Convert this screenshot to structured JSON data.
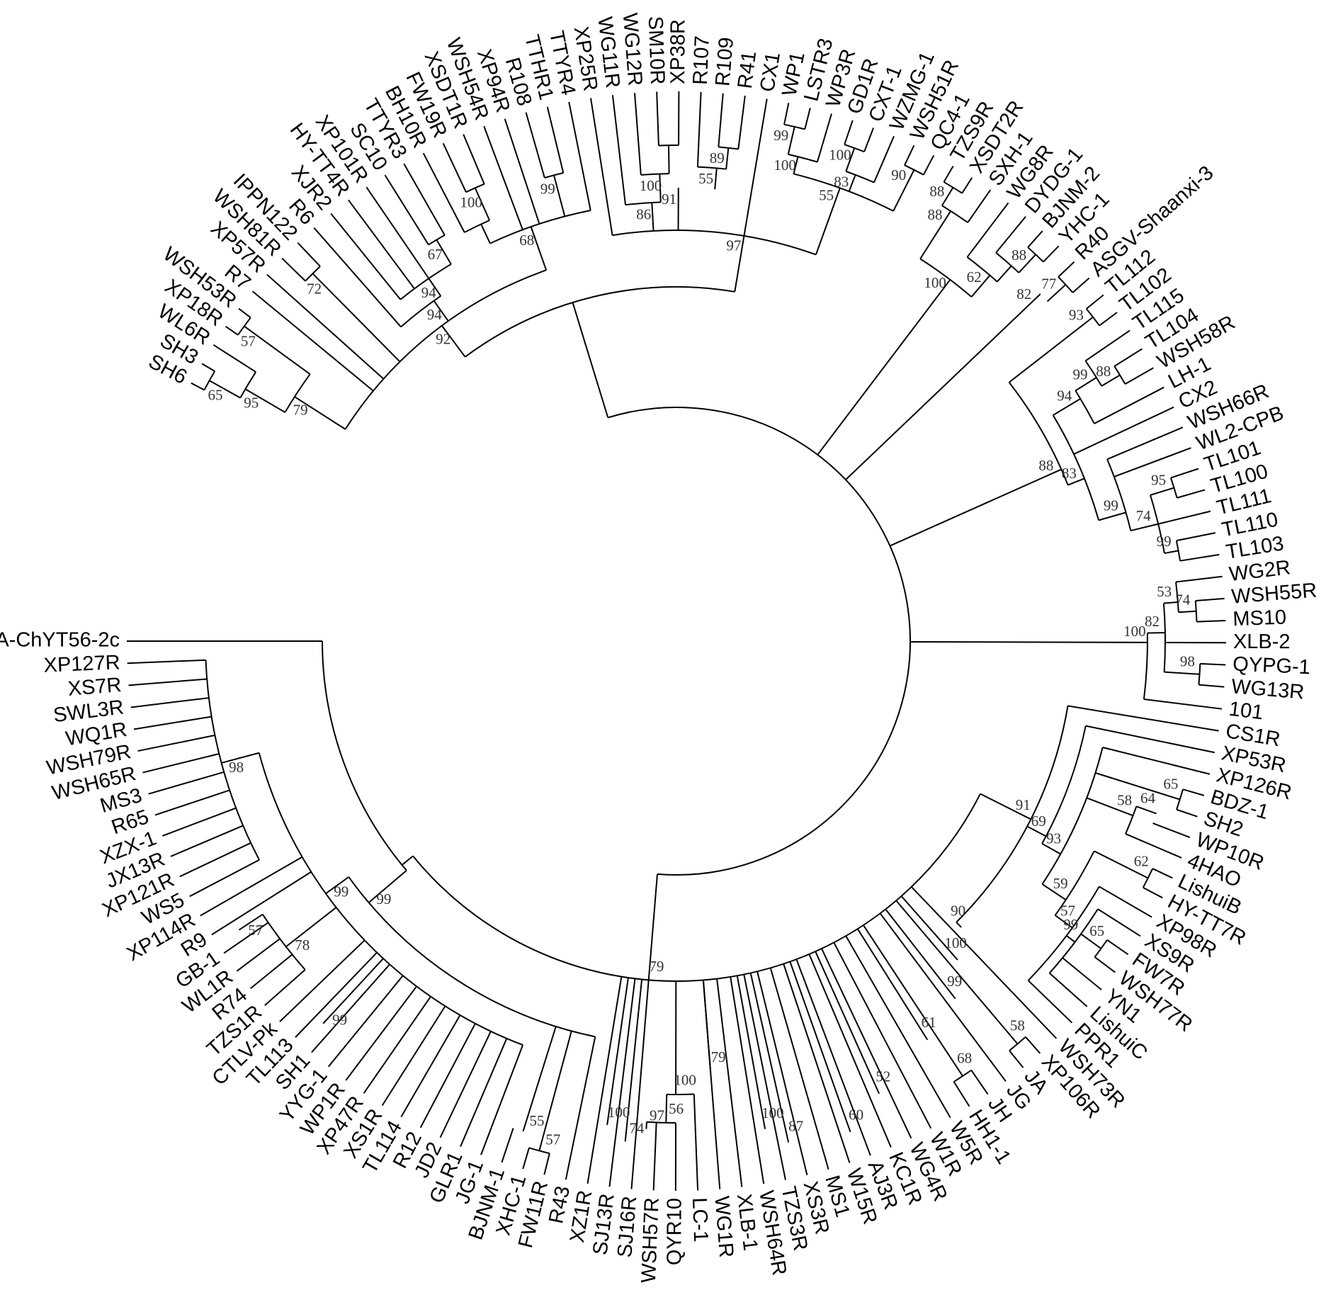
{
  "tree": {
    "leaves": [
      "SH6",
      "SH3",
      "WL6R",
      "XP18R",
      "WSH53R",
      "R7",
      "XP57R",
      "WSH81R",
      "IPPN122",
      "R6",
      "XJR2",
      "HY-TT4R",
      "XP101R",
      "SC10",
      "TTYR3",
      "BH10R",
      "FW19R",
      "XSDT1R",
      "WSH54R",
      "XP94R",
      "R108",
      "TTHR1",
      "TTYR4",
      "XP25R",
      "WG11R",
      "WG12R",
      "SM10R",
      "XP38R",
      "R107",
      "R109",
      "R41",
      "CX1",
      "WP1",
      "LSTR3",
      "WP3R",
      "GD1R",
      "CXT-1",
      "WZMG-1",
      "WSH51R",
      "QC4-1",
      "TZS9R",
      "XSDT2R",
      "SXH-1",
      "WG8R",
      "DYDG-1",
      "BJNM-2",
      "YHC-1",
      "R40",
      "ASGV-Shaanxi-3",
      "TL112",
      "TL102",
      "TL115",
      "TL104",
      "WSH58R",
      "LH-1",
      "CX2",
      "WSH66R",
      "WL2-CPB",
      "TL101",
      "TL100",
      "TL111",
      "TL110",
      "TL103",
      "WG2R",
      "WSH55R",
      "MS10",
      "XLB-2",
      "QYPG-1",
      "WG13R",
      "101",
      "CS1R",
      "XP53R",
      "XP126R",
      "BDZ-1",
      "SH2",
      "WP10R",
      "4HAO",
      "LishuiB",
      "HY-TT7R",
      "XP98R",
      "XS9R",
      "FW7R",
      "WSH77R",
      "YN1",
      "LishuiC",
      "PPR1",
      "WSH73R",
      "XP106R",
      "JA",
      "JG",
      "JH",
      "HH1-1",
      "W5R",
      "W1R",
      "WG4R",
      "KC1R",
      "AJ3R",
      "W15R",
      "MS1",
      "XS3R",
      "TZS3R",
      "WSH64R",
      "XLB-1",
      "WG1R",
      "LC-1",
      "QYR10",
      "WSH57R",
      "SJ16R",
      "SJ13R",
      "XZ1R",
      "R43",
      "FW11R",
      "XHC-1",
      "BJNM-1",
      "JG-1",
      "GLR1",
      "JD2",
      "R12",
      "TL114",
      "XS1R",
      "XP47R",
      "WP1R",
      "YYG-1",
      "SH1",
      "TL113",
      "CTLV-Pk",
      "TZS1R",
      "R74",
      "WL1R",
      "GB-1",
      "R9",
      "XP114R",
      "WS5",
      "XP121R",
      "JX13R",
      "XZX-1",
      "R65",
      "MS3",
      "WSH65R",
      "WSH79R",
      "WQ1R",
      "SWL3R",
      "XS7R",
      "XP127R",
      "CVA-ChYT56-2c"
    ],
    "clades": [
      {
        "r": 755,
        "from": "SH6",
        "to": "SH3",
        "support": "65"
      },
      {
        "r": 755,
        "from": "XP18R",
        "to": "WSH53R",
        "support": "57"
      },
      {
        "r": 705,
        "from": "SH6",
        "to": "WL6R",
        "support": "95"
      },
      {
        "r": 640,
        "from": "SH6",
        "to": "WSH53R",
        "support": "79"
      },
      {
        "r": 730,
        "from": "WSH81R",
        "to": "IPPN122",
        "support": "72"
      },
      {
        "r": 660,
        "from": "SC10",
        "to": "TTYR3",
        "support": "67"
      },
      {
        "r": 620,
        "from": "XJR2",
        "to": "TTYR3",
        "support": "94"
      },
      {
        "r": 590,
        "from": "R6",
        "to": "TTYR3",
        "support": "94"
      },
      {
        "r": 700,
        "from": "FW19R",
        "to": "XSDT1R",
        "support": "100"
      },
      {
        "r": 650,
        "from": "BH10R",
        "to": "XSDT1R",
        "support": ""
      },
      {
        "r": 680,
        "from": "R108",
        "to": "TTHR1",
        "support": "99"
      },
      {
        "r": 620,
        "from": "BH10R",
        "to": "TTYR4",
        "support": "68"
      },
      {
        "r": 555,
        "from": "SH6",
        "to": "TTYR4",
        "support": "92"
      },
      {
        "r": 700,
        "from": "SM10R",
        "to": "XP38R",
        "support": ""
      },
      {
        "r": 660,
        "from": "WG12R",
        "to": "XP38R",
        "support": "100"
      },
      {
        "r": 620,
        "from": "WG11R",
        "to": "XP38R",
        "support": "86"
      },
      {
        "r": 700,
        "from": "R109",
        "to": "R41",
        "support": "89"
      },
      {
        "r": 670,
        "from": "R107",
        "to": "R41",
        "support": "55"
      },
      {
        "r": 640,
        "from": "WG11R",
        "to": "R41",
        "support": "91"
      },
      {
        "r": 745,
        "from": "WP1",
        "to": "LSTR3",
        "support": "99"
      },
      {
        "r": 705,
        "from": "WP1",
        "to": "WP3R",
        "support": "100"
      },
      {
        "r": 740,
        "from": "GD1R",
        "to": "CXT-1",
        "support": "100"
      },
      {
        "r": 705,
        "from": "GD1R",
        "to": "WZMG-1",
        "support": "83"
      },
      {
        "r": 745,
        "from": "WSH51R",
        "to": "QC4-1",
        "support": "90"
      },
      {
        "r": 680,
        "from": "WP1",
        "to": "QC4-1",
        "support": "55"
      },
      {
        "r": 580,
        "from": "XP25R",
        "to": "QC4-1",
        "support": "97"
      },
      {
        "r": 500,
        "from": "SH6",
        "to": "QC4-1",
        "support": ""
      },
      {
        "r": 750,
        "from": "TZS9R",
        "to": "XSDT2R",
        "support": "88"
      },
      {
        "r": 720,
        "from": "TZS9R",
        "to": "SXH-1",
        "support": "88"
      },
      {
        "r": 745,
        "from": "BJNM-2",
        "to": "YHC-1",
        "support": "88"
      },
      {
        "r": 710,
        "from": "DYDG-1",
        "to": "YHC-1",
        "support": ""
      },
      {
        "r": 680,
        "from": "WG8R",
        "to": "YHC-1",
        "support": "62"
      },
      {
        "r": 640,
        "from": "TZS9R",
        "to": "YHC-1",
        "support": "100"
      },
      {
        "r": 745,
        "from": "R40",
        "to": "ASGV-Shaanxi-3",
        "support": "77"
      },
      {
        "r": 710,
        "from": "YHC-1",
        "to": "ASGV-Shaanxi-3",
        "support": "82"
      },
      {
        "r": 745,
        "from": "TL112",
        "to": "TL102",
        "support": "93"
      },
      {
        "r": 730,
        "from": "TL104",
        "to": "WSH58R",
        "support": "88"
      },
      {
        "r": 700,
        "from": "TL115",
        "to": "WSH58R",
        "support": "99"
      },
      {
        "r": 665,
        "from": "TL115",
        "to": "LH-1",
        "support": "94"
      },
      {
        "r": 735,
        "from": "TL101",
        "to": "TL100",
        "support": "95"
      },
      {
        "r": 720,
        "from": "TL110",
        "to": "TL103",
        "support": "99"
      },
      {
        "r": 700,
        "from": "TL101",
        "to": "TL103",
        "support": "74"
      },
      {
        "r": 660,
        "from": "WSH66R",
        "to": "TL103",
        "support": "99"
      },
      {
        "r": 620,
        "from": "TL115",
        "to": "TL103",
        "support": "83"
      },
      {
        "r": 595,
        "from": "TL112",
        "to": "TL103",
        "support": "88"
      },
      {
        "r": 735,
        "from": "WSH55R",
        "to": "MS10",
        "support": "74"
      },
      {
        "r": 710,
        "from": "WG2R",
        "to": "MS10",
        "support": "53"
      },
      {
        "r": 740,
        "from": "QYPG-1",
        "to": "WG13R",
        "support": "98"
      },
      {
        "r": 690,
        "from": "WG2R",
        "to": "WG13R",
        "support": "82"
      },
      {
        "r": 665,
        "from": "WG2R",
        "to": "101",
        "support": "100"
      },
      {
        "r": 745,
        "from": "BDZ-1",
        "to": "SH2",
        "support": "65"
      },
      {
        "r": 720,
        "from": "SH2",
        "to": "WP10R",
        "support": "64"
      },
      {
        "r": 690,
        "from": "SH2",
        "to": "4HAO",
        "support": "58"
      },
      {
        "r": 745,
        "from": "LishuiB",
        "to": "HY-TT7R",
        "support": "62"
      },
      {
        "r": 740,
        "from": "FW7R",
        "to": "WSH77R",
        "support": "65"
      },
      {
        "r": 705,
        "from": "XS9R",
        "to": "LishuiC",
        "support": "99"
      },
      {
        "r": 690,
        "from": "HY-TT7R",
        "to": "PPR1",
        "support": "57"
      },
      {
        "r": 660,
        "from": "4HAO",
        "to": "PPR1",
        "support": "59"
      },
      {
        "r": 620,
        "from": "XP126R",
        "to": "PPR1",
        "support": "93"
      },
      {
        "r": 590,
        "from": "XP53R",
        "to": "PPR1",
        "support": "69"
      },
      {
        "r": 560,
        "from": "CS1R",
        "to": "PPR1",
        "support": "91"
      },
      {
        "r": 745,
        "from": "XP106R",
        "to": "JA",
        "support": "58"
      },
      {
        "r": 735,
        "from": "JH",
        "to": "HH1-1",
        "support": "68"
      },
      {
        "r": 735,
        "from": "W15R",
        "to": "AJ3R",
        "support": "60"
      },
      {
        "r": 700,
        "from": "AJ3R",
        "to": "W1R",
        "support": "52"
      },
      {
        "r": 665,
        "from": "W1R",
        "to": "JG",
        "support": "61"
      },
      {
        "r": 640,
        "from": "JG",
        "to": "JA",
        "support": "99"
      },
      {
        "r": 600,
        "from": "JA",
        "to": "WSH73R",
        "support": "100"
      },
      {
        "r": 570,
        "from": "WSH73R",
        "to": "PPR1",
        "support": "90"
      },
      {
        "r": 725,
        "from": "TZS3R",
        "to": "XS3R",
        "support": "87"
      },
      {
        "r": 700,
        "from": "XLB-1",
        "to": "XS3R",
        "support": "100"
      },
      {
        "r": 690,
        "from": "SJ16R",
        "to": "WSH57R",
        "support": "97"
      },
      {
        "r": 710,
        "from": "SJ13R",
        "to": "SJ16R",
        "support": "74"
      },
      {
        "r": 680,
        "from": "QYR10",
        "to": "WSH57R",
        "support": "56"
      },
      {
        "r": 640,
        "from": "LC-1",
        "to": "WSH57R",
        "support": "100"
      },
      {
        "r": 610,
        "from": "LC-1",
        "to": "XLB-1",
        "support": "79"
      },
      {
        "r": 690,
        "from": "XZ1R",
        "to": "SJ13R",
        "support": "100"
      },
      {
        "r": 745,
        "from": "FW11R",
        "to": "XHC-1",
        "support": "57"
      },
      {
        "r": 725,
        "from": "XHC-1",
        "to": "BJNM-1",
        "support": "55"
      },
      {
        "r": 735,
        "from": "TL113",
        "to": "SH1",
        "support": "99"
      },
      {
        "r": 740,
        "from": "R9",
        "to": "GB-1",
        "support": "57"
      },
      {
        "r": 700,
        "from": "TZS1R",
        "to": "GB-1",
        "support": "78"
      },
      {
        "r": 665,
        "from": "WS5",
        "to": "XP127R",
        "support": "98"
      },
      {
        "r": 610,
        "from": "JG-1",
        "to": "XP127R",
        "support": "99"
      },
      {
        "r": 570,
        "from": "R43",
        "to": "XP127R",
        "support": "99"
      },
      {
        "r": 500,
        "from": "R43",
        "to": "CVA-ChYT56-2c",
        "support": ""
      },
      {
        "r": 480,
        "from": "CS1R",
        "to": "CVA-ChYT56-2c",
        "support": "79"
      }
    ]
  }
}
